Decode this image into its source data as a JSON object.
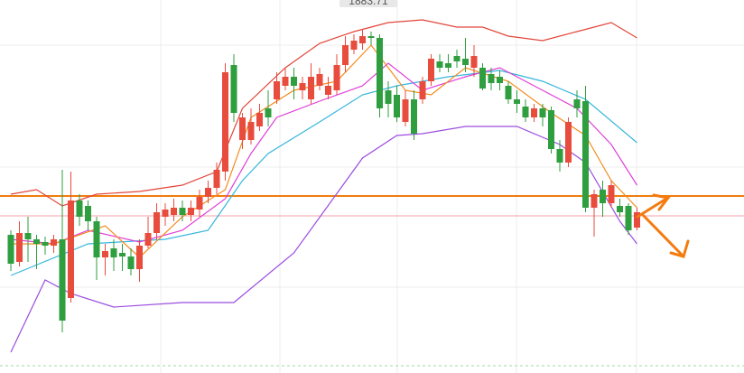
{
  "chart_data": {
    "type": "candlestick",
    "ylim": [
      1487,
      1900
    ],
    "up_color": "#e84c3d",
    "down_color": "#2e9e3e",
    "price_label": "1883.71",
    "open": [
      1640,
      1610,
      1642,
      1635,
      1632,
      1628,
      1635,
      1570,
      1678,
      1672,
      1655,
      1615,
      1625,
      1620,
      1616,
      1602,
      1628,
      1642,
      1660,
      1662,
      1670,
      1662,
      1668,
      1682,
      1692,
      1710,
      1828,
      1745,
      1745,
      1760,
      1780,
      1790,
      1805,
      1815,
      1800,
      1790,
      1805,
      1795,
      1800,
      1828,
      1845,
      1852,
      1860,
      1858,
      1800,
      1795,
      1765,
      1790,
      1790,
      1810,
      1832,
      1830,
      1838,
      1835,
      1825,
      1825,
      1818,
      1815,
      1805,
      1790,
      1782,
      1770,
      1780,
      1778,
      1735,
      1720,
      1790,
      1788,
      1670,
      1690,
      1675,
      1672,
      1672,
      1648
    ],
    "high": [
      1645,
      1655,
      1660,
      1640,
      1638,
      1640,
      1712,
      1710,
      1685,
      1678,
      1660,
      1630,
      1635,
      1630,
      1625,
      1635,
      1660,
      1675,
      1675,
      1680,
      1678,
      1678,
      1690,
      1700,
      1720,
      1830,
      1840,
      1775,
      1780,
      1785,
      1800,
      1820,
      1825,
      1825,
      1815,
      1830,
      1825,
      1815,
      1840,
      1860,
      1862,
      1868,
      1865,
      1862,
      1810,
      1805,
      1800,
      1800,
      1815,
      1840,
      1840,
      1840,
      1845,
      1858,
      1850,
      1830,
      1825,
      1822,
      1810,
      1800,
      1790,
      1785,
      1785,
      1782,
      1745,
      1770,
      1800,
      1805,
      1690,
      1700,
      1700,
      1680,
      1675,
      1670
    ],
    "low": [
      1600,
      1605,
      1610,
      1602,
      1618,
      1620,
      1532,
      1565,
      1650,
      1645,
      1590,
      1595,
      1600,
      1600,
      1595,
      1588,
      1625,
      1635,
      1650,
      1655,
      1655,
      1655,
      1660,
      1675,
      1685,
      1700,
      1765,
      1735,
      1740,
      1755,
      1760,
      1785,
      1800,
      1790,
      1790,
      1785,
      1800,
      1790,
      1795,
      1820,
      1840,
      1845,
      1850,
      1770,
      1770,
      1765,
      1760,
      1745,
      1785,
      1805,
      1820,
      1820,
      1825,
      1820,
      1815,
      1800,
      1800,
      1800,
      1785,
      1775,
      1765,
      1765,
      1760,
      1730,
      1710,
      1715,
      1770,
      1665,
      1638,
      1660,
      1670,
      1660,
      1640,
      1645
    ],
    "close": [
      1608,
      1642,
      1635,
      1630,
      1628,
      1635,
      1545,
      1678,
      1660,
      1655,
      1615,
      1622,
      1615,
      1616,
      1602,
      1628,
      1642,
      1665,
      1668,
      1670,
      1662,
      1670,
      1682,
      1692,
      1712,
      1820,
      1775,
      1770,
      1765,
      1775,
      1770,
      1810,
      1815,
      1805,
      1808,
      1815,
      1818,
      1805,
      1828,
      1850,
      1855,
      1860,
      1858,
      1780,
      1785,
      1770,
      1790,
      1752,
      1810,
      1835,
      1825,
      1825,
      1832,
      1828,
      1838,
      1802,
      1808,
      1808,
      1790,
      1785,
      1770,
      1780,
      1770,
      1735,
      1720,
      1765,
      1780,
      1670,
      1685,
      1675,
      1695,
      1665,
      1645,
      1665
    ],
    "lines": [
      {
        "color": "#e2463a",
        "x": [
          0,
          3,
          6,
          10,
          15,
          20,
          24,
          27,
          32,
          36,
          40,
          44,
          48,
          52,
          55,
          58,
          62,
          66,
          70,
          73
        ],
        "values": [
          1685,
          1690,
          1672,
          1685,
          1688,
          1695,
          1710,
          1780,
          1825,
          1852,
          1865,
          1875,
          1878,
          1870,
          1870,
          1860,
          1855,
          1865,
          1875,
          1858
        ]
      },
      {
        "color": "#36b6dc",
        "x": [
          0,
          9,
          18,
          23,
          27,
          30,
          36,
          41,
          45,
          51,
          57,
          62,
          67,
          73
        ],
        "values": [
          1595,
          1630,
          1635,
          1645,
          1700,
          1730,
          1765,
          1795,
          1805,
          1815,
          1822,
          1810,
          1790,
          1742
        ]
      },
      {
        "color": "#9b4de0",
        "x": [
          0,
          4,
          7,
          12,
          20,
          26,
          33,
          41,
          45,
          48,
          53,
          59,
          64,
          67,
          71,
          73
        ],
        "values": [
          1510,
          1590,
          1575,
          1560,
          1565,
          1565,
          1620,
          1725,
          1750,
          1752,
          1760,
          1760,
          1740,
          1720,
          1655,
          1630
        ]
      },
      {
        "color": "#e040d8",
        "x": [
          0,
          5,
          9,
          15,
          20,
          25,
          28,
          31,
          36,
          41,
          44,
          48,
          53,
          57,
          62,
          66,
          70,
          73
        ],
        "values": [
          1635,
          1630,
          1645,
          1632,
          1645,
          1680,
          1730,
          1770,
          1788,
          1805,
          1830,
          1800,
          1815,
          1825,
          1800,
          1780,
          1740,
          1695
        ]
      },
      {
        "color": "#f28c1e",
        "x": [
          0,
          5,
          8,
          11,
          15,
          20,
          25,
          28,
          33,
          38,
          42,
          46,
          49,
          53,
          58,
          63,
          67,
          70,
          73
        ],
        "values": [
          1630,
          1630,
          1640,
          1650,
          1615,
          1660,
          1690,
          1770,
          1800,
          1810,
          1850,
          1800,
          1795,
          1825,
          1810,
          1775,
          1750,
          1700,
          1670
        ]
      }
    ],
    "levels": [
      {
        "value": 1683,
        "color": "#f07d10"
      },
      {
        "value": 1661,
        "color": "#f4a0a8"
      }
    ]
  }
}
